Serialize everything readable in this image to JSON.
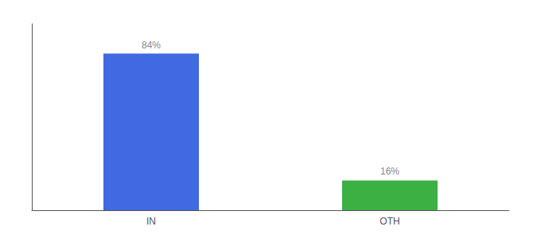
{
  "chart_data": {
    "type": "bar",
    "categories": [
      "IN",
      "OTH"
    ],
    "values": [
      84,
      16
    ],
    "value_labels": [
      "84%",
      "16%"
    ],
    "colors": [
      "#4169e1",
      "#3cb043"
    ],
    "ylim": [
      0,
      100
    ],
    "grid": false,
    "data_labels": true,
    "tick_labels": "x"
  }
}
